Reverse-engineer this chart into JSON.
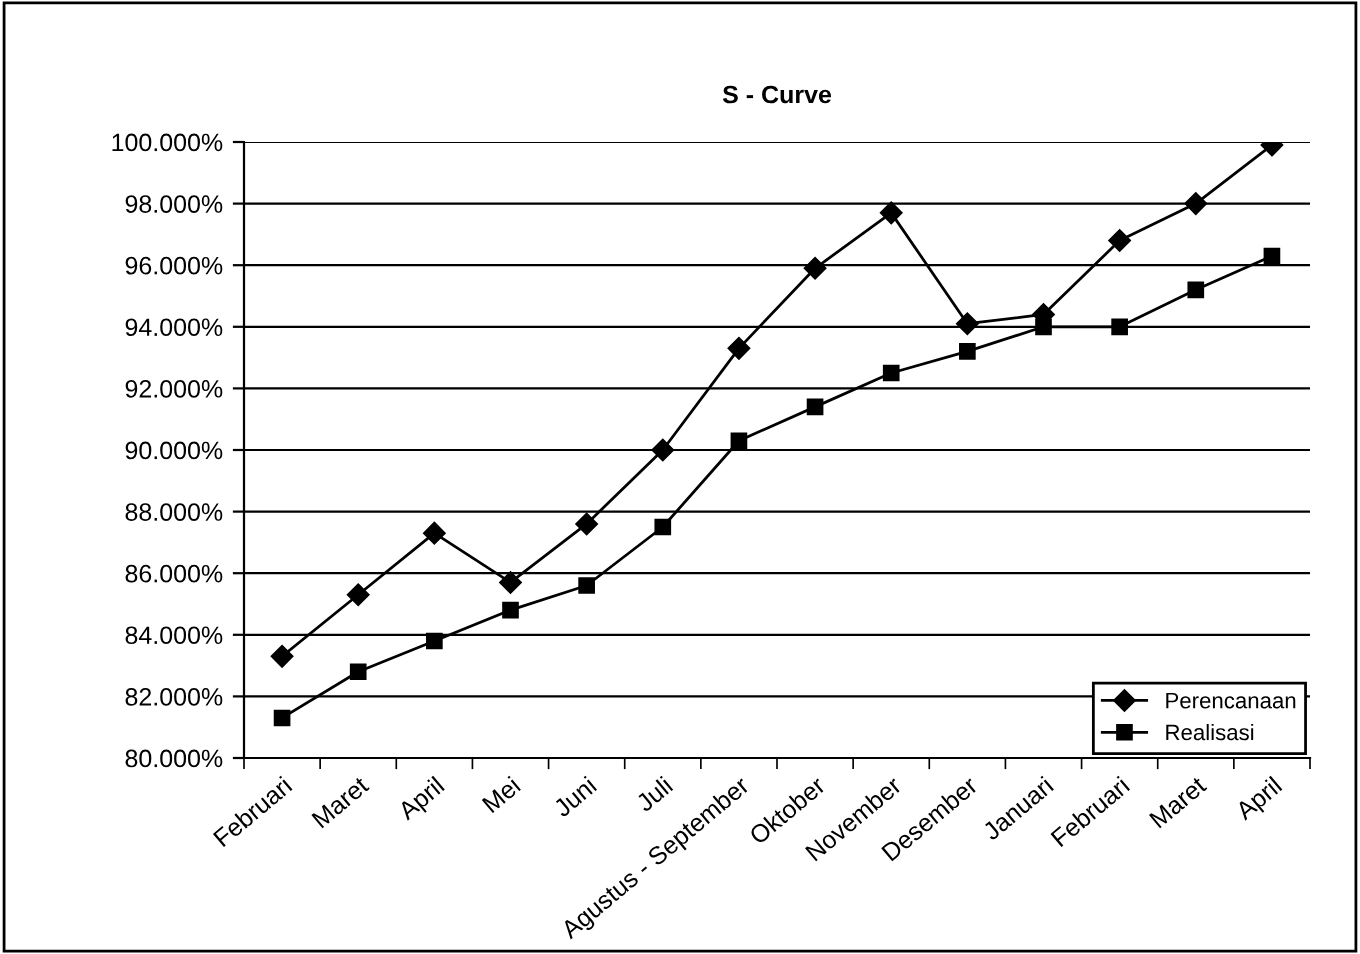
{
  "chart_data": {
    "type": "line",
    "title": "S - Curve",
    "categories": [
      "Februari",
      "Maret",
      "April",
      "Mei",
      "Juni",
      "Juli",
      "Agustus - September",
      "Oktober",
      "November",
      "Desember",
      "Januari",
      "Februari",
      "Maret",
      "April"
    ],
    "series": [
      {
        "name": "Perencanaan",
        "color": "#000000",
        "marker": "diamond",
        "values": [
          83.3,
          85.3,
          87.3,
          85.7,
          87.6,
          90.0,
          93.3,
          95.9,
          97.7,
          94.1,
          94.4,
          96.8,
          98.0,
          99.9
        ]
      },
      {
        "name": "Realisasi",
        "color": "#000000",
        "marker": "square",
        "values": [
          81.3,
          82.8,
          83.8,
          84.8,
          85.6,
          87.5,
          90.3,
          91.4,
          92.5,
          93.2,
          94.0,
          94.0,
          95.2,
          96.3
        ]
      }
    ],
    "ylim": [
      80,
      100
    ],
    "yticks": [
      {
        "value": 80,
        "label": "80.000%"
      },
      {
        "value": 82,
        "label": "82.000%"
      },
      {
        "value": 84,
        "label": "84.000%"
      },
      {
        "value": 86,
        "label": "86.000%"
      },
      {
        "value": 88,
        "label": "88.000%"
      },
      {
        "value": 90,
        "label": "90.000%"
      },
      {
        "value": 92,
        "label": "92.000%"
      },
      {
        "value": 94,
        "label": "94.000%"
      },
      {
        "value": 96,
        "label": "96.000%"
      },
      {
        "value": 98,
        "label": "98.000%"
      },
      {
        "value": 100,
        "label": "100.000%"
      }
    ],
    "grid": "y",
    "legend": "bottom right",
    "line_style": "solid"
  }
}
